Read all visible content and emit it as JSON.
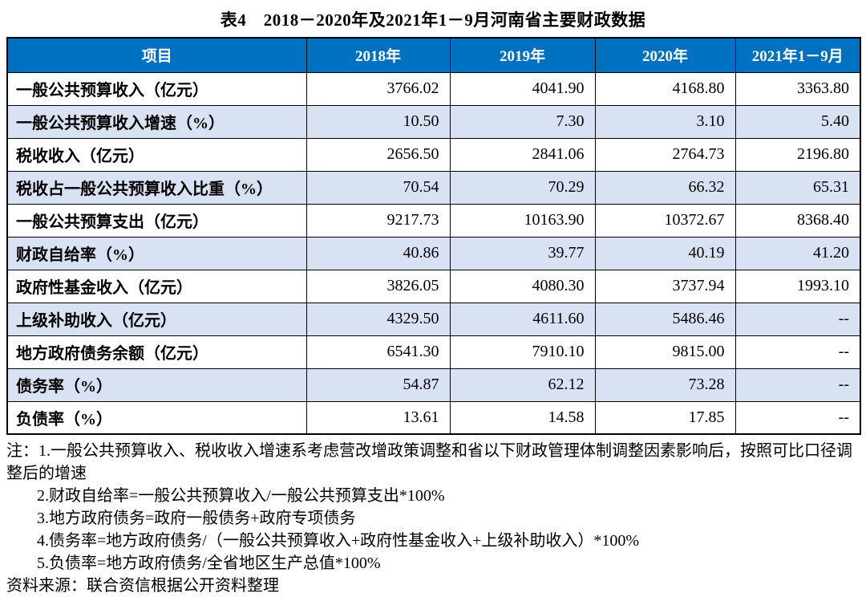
{
  "title": "表4　2018－2020年及2021年1－9月河南省主要财政数据",
  "table": {
    "columns": [
      "项目",
      "2018年",
      "2019年",
      "2020年",
      "2021年1－9月"
    ],
    "rows": [
      {
        "label": "一般公共预算收入（亿元）",
        "values": [
          "3766.02",
          "4041.90",
          "4168.80",
          "3363.80"
        ]
      },
      {
        "label": "一般公共预算收入增速（%）",
        "values": [
          "10.50",
          "7.30",
          "3.10",
          "5.40"
        ]
      },
      {
        "label": "税收收入（亿元）",
        "values": [
          "2656.50",
          "2841.06",
          "2764.73",
          "2196.80"
        ]
      },
      {
        "label": "税收占一般公共预算收入比重（%）",
        "values": [
          "70.54",
          "70.29",
          "66.32",
          "65.31"
        ]
      },
      {
        "label": "一般公共预算支出（亿元）",
        "values": [
          "9217.73",
          "10163.90",
          "10372.67",
          "8368.40"
        ]
      },
      {
        "label": "财政自给率（%）",
        "values": [
          "40.86",
          "39.77",
          "40.19",
          "41.20"
        ]
      },
      {
        "label": "政府性基金收入（亿元）",
        "values": [
          "3826.05",
          "4080.30",
          "3737.94",
          "1993.10"
        ]
      },
      {
        "label": "上级补助收入（亿元）",
        "values": [
          "4329.50",
          "4611.60",
          "5486.46",
          "--"
        ]
      },
      {
        "label": "地方政府债务余额（亿元）",
        "values": [
          "6541.30",
          "7910.10",
          "9815.00",
          "--"
        ]
      },
      {
        "label": "债务率（%）",
        "values": [
          "54.87",
          "62.12",
          "73.28",
          "--"
        ]
      },
      {
        "label": "负债率（%）",
        "values": [
          "13.61",
          "14.58",
          "17.85",
          "--"
        ]
      }
    ]
  },
  "notes": [
    "注：1.一般公共预算收入、税收收入增速系考虑营改增政策调整和省以下财政管理体制调整因素影响后，按照可比口径调整后的增速",
    "2.财政自给率=一般公共预算收入/一般公共预算支出*100%",
    "3.地方政府债务=政府一般债务+政府专项债务",
    "4.债务率=地方政府债务/（一般公共预算收入+政府性基金收入+上级补助收入）*100%",
    "5.负债率=地方政府债务/全省地区生产总值*100%"
  ],
  "source": "资料来源：联合资信根据公开资料整理",
  "colors": {
    "header_bg": "#0070C0",
    "header_text": "#FFFFFF",
    "row_alt_bg": "#D9E2F3",
    "border": "#000000"
  },
  "chart_data": {
    "type": "table",
    "title": "表4　2018－2020年及2021年1－9月河南省主要财政数据",
    "categories": [
      "2018年",
      "2019年",
      "2020年",
      "2021年1－9月"
    ],
    "series": [
      {
        "name": "一般公共预算收入（亿元）",
        "values": [
          3766.02,
          4041.9,
          4168.8,
          3363.8
        ]
      },
      {
        "name": "一般公共预算收入增速（%）",
        "values": [
          10.5,
          7.3,
          3.1,
          5.4
        ]
      },
      {
        "name": "税收收入（亿元）",
        "values": [
          2656.5,
          2841.06,
          2764.73,
          2196.8
        ]
      },
      {
        "name": "税收占一般公共预算收入比重（%）",
        "values": [
          70.54,
          70.29,
          66.32,
          65.31
        ]
      },
      {
        "name": "一般公共预算支出（亿元）",
        "values": [
          9217.73,
          10163.9,
          10372.67,
          8368.4
        ]
      },
      {
        "name": "财政自给率（%）",
        "values": [
          40.86,
          39.77,
          40.19,
          41.2
        ]
      },
      {
        "name": "政府性基金收入（亿元）",
        "values": [
          3826.05,
          4080.3,
          3737.94,
          1993.1
        ]
      },
      {
        "name": "上级补助收入（亿元）",
        "values": [
          4329.5,
          4611.6,
          5486.46,
          null
        ]
      },
      {
        "name": "地方政府债务余额（亿元）",
        "values": [
          6541.3,
          7910.1,
          9815.0,
          null
        ]
      },
      {
        "name": "债务率（%）",
        "values": [
          54.87,
          62.12,
          73.28,
          null
        ]
      },
      {
        "name": "负债率（%）",
        "values": [
          13.61,
          14.58,
          17.85,
          null
        ]
      }
    ]
  }
}
